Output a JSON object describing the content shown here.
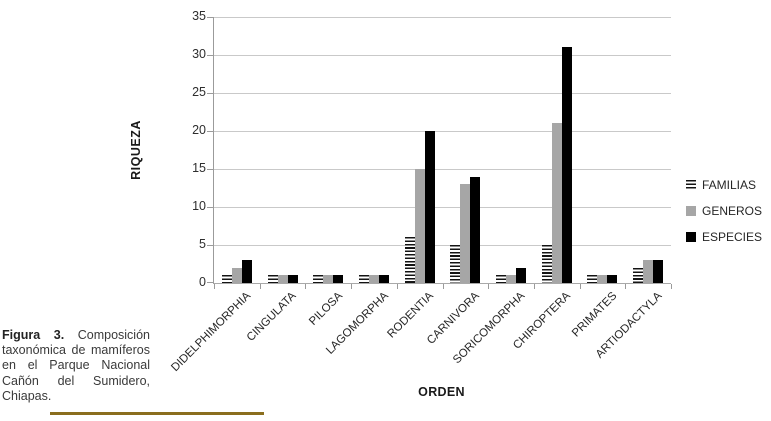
{
  "chart_data": {
    "type": "bar",
    "title": "",
    "xlabel": "ORDEN",
    "ylabel": "RIQUEZA",
    "ylim": [
      0,
      35
    ],
    "yticks": [
      0,
      5,
      10,
      15,
      20,
      25,
      30,
      35
    ],
    "grid": true,
    "legend_position": "right",
    "categories": [
      "DIDELPHIMORPHIA",
      "CINGULATA",
      "PILOSA",
      "LAGOMORPHA",
      "RODENTIA",
      "CARNIVORA",
      "SORICOMORPHA",
      "CHIROPTERA",
      "PRIMATES",
      "ARTIODACTYLA"
    ],
    "series": [
      {
        "name": "FAMILIAS",
        "style": "striped",
        "values": [
          1,
          1,
          1,
          1,
          6,
          5,
          1,
          5,
          1,
          2
        ]
      },
      {
        "name": "GENEROS",
        "style": "solid",
        "color": "#a6a6a6",
        "values": [
          2,
          1,
          1,
          1,
          15,
          13,
          1,
          21,
          1,
          3
        ]
      },
      {
        "name": "ESPECIES",
        "style": "solid",
        "color": "#000000",
        "values": [
          3,
          1,
          1,
          1,
          20,
          14,
          2,
          31,
          1,
          3
        ]
      }
    ]
  },
  "caption": {
    "label": "Figura 3.",
    "text": "Composición taxonómica de mamíferos en el Parque Nacional Cañón del Sumidero, Chiapas."
  },
  "colors": {
    "grid": "#c9c9c9",
    "axis": "#9b9b9b",
    "generos_gray": "#a6a6a6",
    "especies_black": "#000000",
    "caption_rule_gold": "#8a6e1e"
  }
}
